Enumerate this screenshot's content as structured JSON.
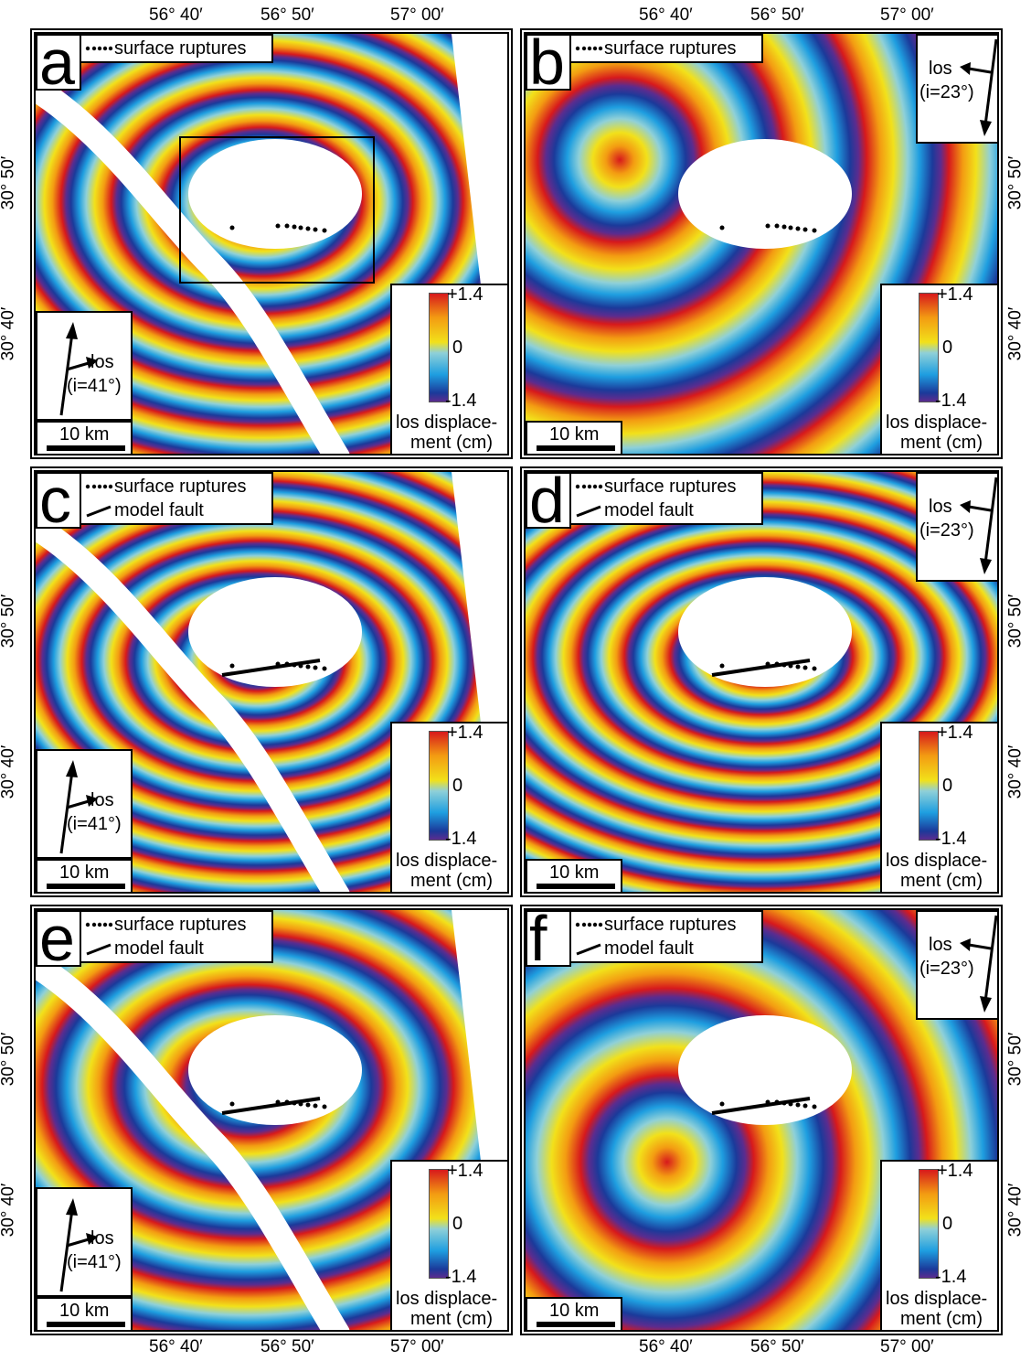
{
  "longitude_labels": [
    "56° 40′",
    "56° 50′",
    "57° 00′"
  ],
  "latitude_labels": [
    "30° 50′",
    "30° 40′"
  ],
  "panels": [
    {
      "letter": "a",
      "legend": [
        "surface ruptures"
      ],
      "los_label": "los",
      "incidence": "(i=41°)",
      "colorbar": {
        "max": "+1.4",
        "mid": "0",
        "min": "-1.4",
        "label": [
          "los displace-",
          "ment (cm)"
        ]
      },
      "scale_bar": "10 km"
    },
    {
      "letter": "b",
      "legend": [
        "surface ruptures"
      ],
      "los_label": "los",
      "incidence": "(i=23°)",
      "colorbar": {
        "max": "+1.4",
        "mid": "0",
        "min": "-1.4",
        "label": [
          "los displace-",
          "ment (cm)"
        ]
      },
      "scale_bar": "10 km"
    },
    {
      "letter": "c",
      "legend": [
        "surface ruptures",
        "model fault"
      ],
      "los_label": "los",
      "incidence": "(i=41°)",
      "colorbar": {
        "max": "+1.4",
        "mid": "0",
        "min": "-1.4",
        "label": [
          "los displace-",
          "ment (cm)"
        ]
      },
      "scale_bar": "10 km"
    },
    {
      "letter": "d",
      "legend": [
        "surface ruptures",
        "model fault"
      ],
      "los_label": "los",
      "incidence": "(i=23°)",
      "colorbar": {
        "max": "+1.4",
        "mid": "0",
        "min": "-1.4",
        "label": [
          "los displace-",
          "ment (cm)"
        ]
      },
      "scale_bar": "10 km"
    },
    {
      "letter": "e",
      "legend": [
        "surface ruptures",
        "model fault"
      ],
      "los_label": "los",
      "incidence": "(i=41°)",
      "colorbar": {
        "max": "+1.4",
        "mid": "0",
        "min": "-1.4",
        "label": [
          "los displace-",
          "ment (cm)"
        ]
      },
      "scale_bar": "10 km"
    },
    {
      "letter": "f",
      "legend": [
        "surface ruptures",
        "model fault"
      ],
      "los_label": "los",
      "incidence": "(i=23°)",
      "colorbar": {
        "max": "+1.4",
        "mid": "0",
        "min": "-1.4",
        "label": [
          "los displace-",
          "ment (cm)"
        ]
      },
      "scale_bar": "10 km"
    }
  ]
}
